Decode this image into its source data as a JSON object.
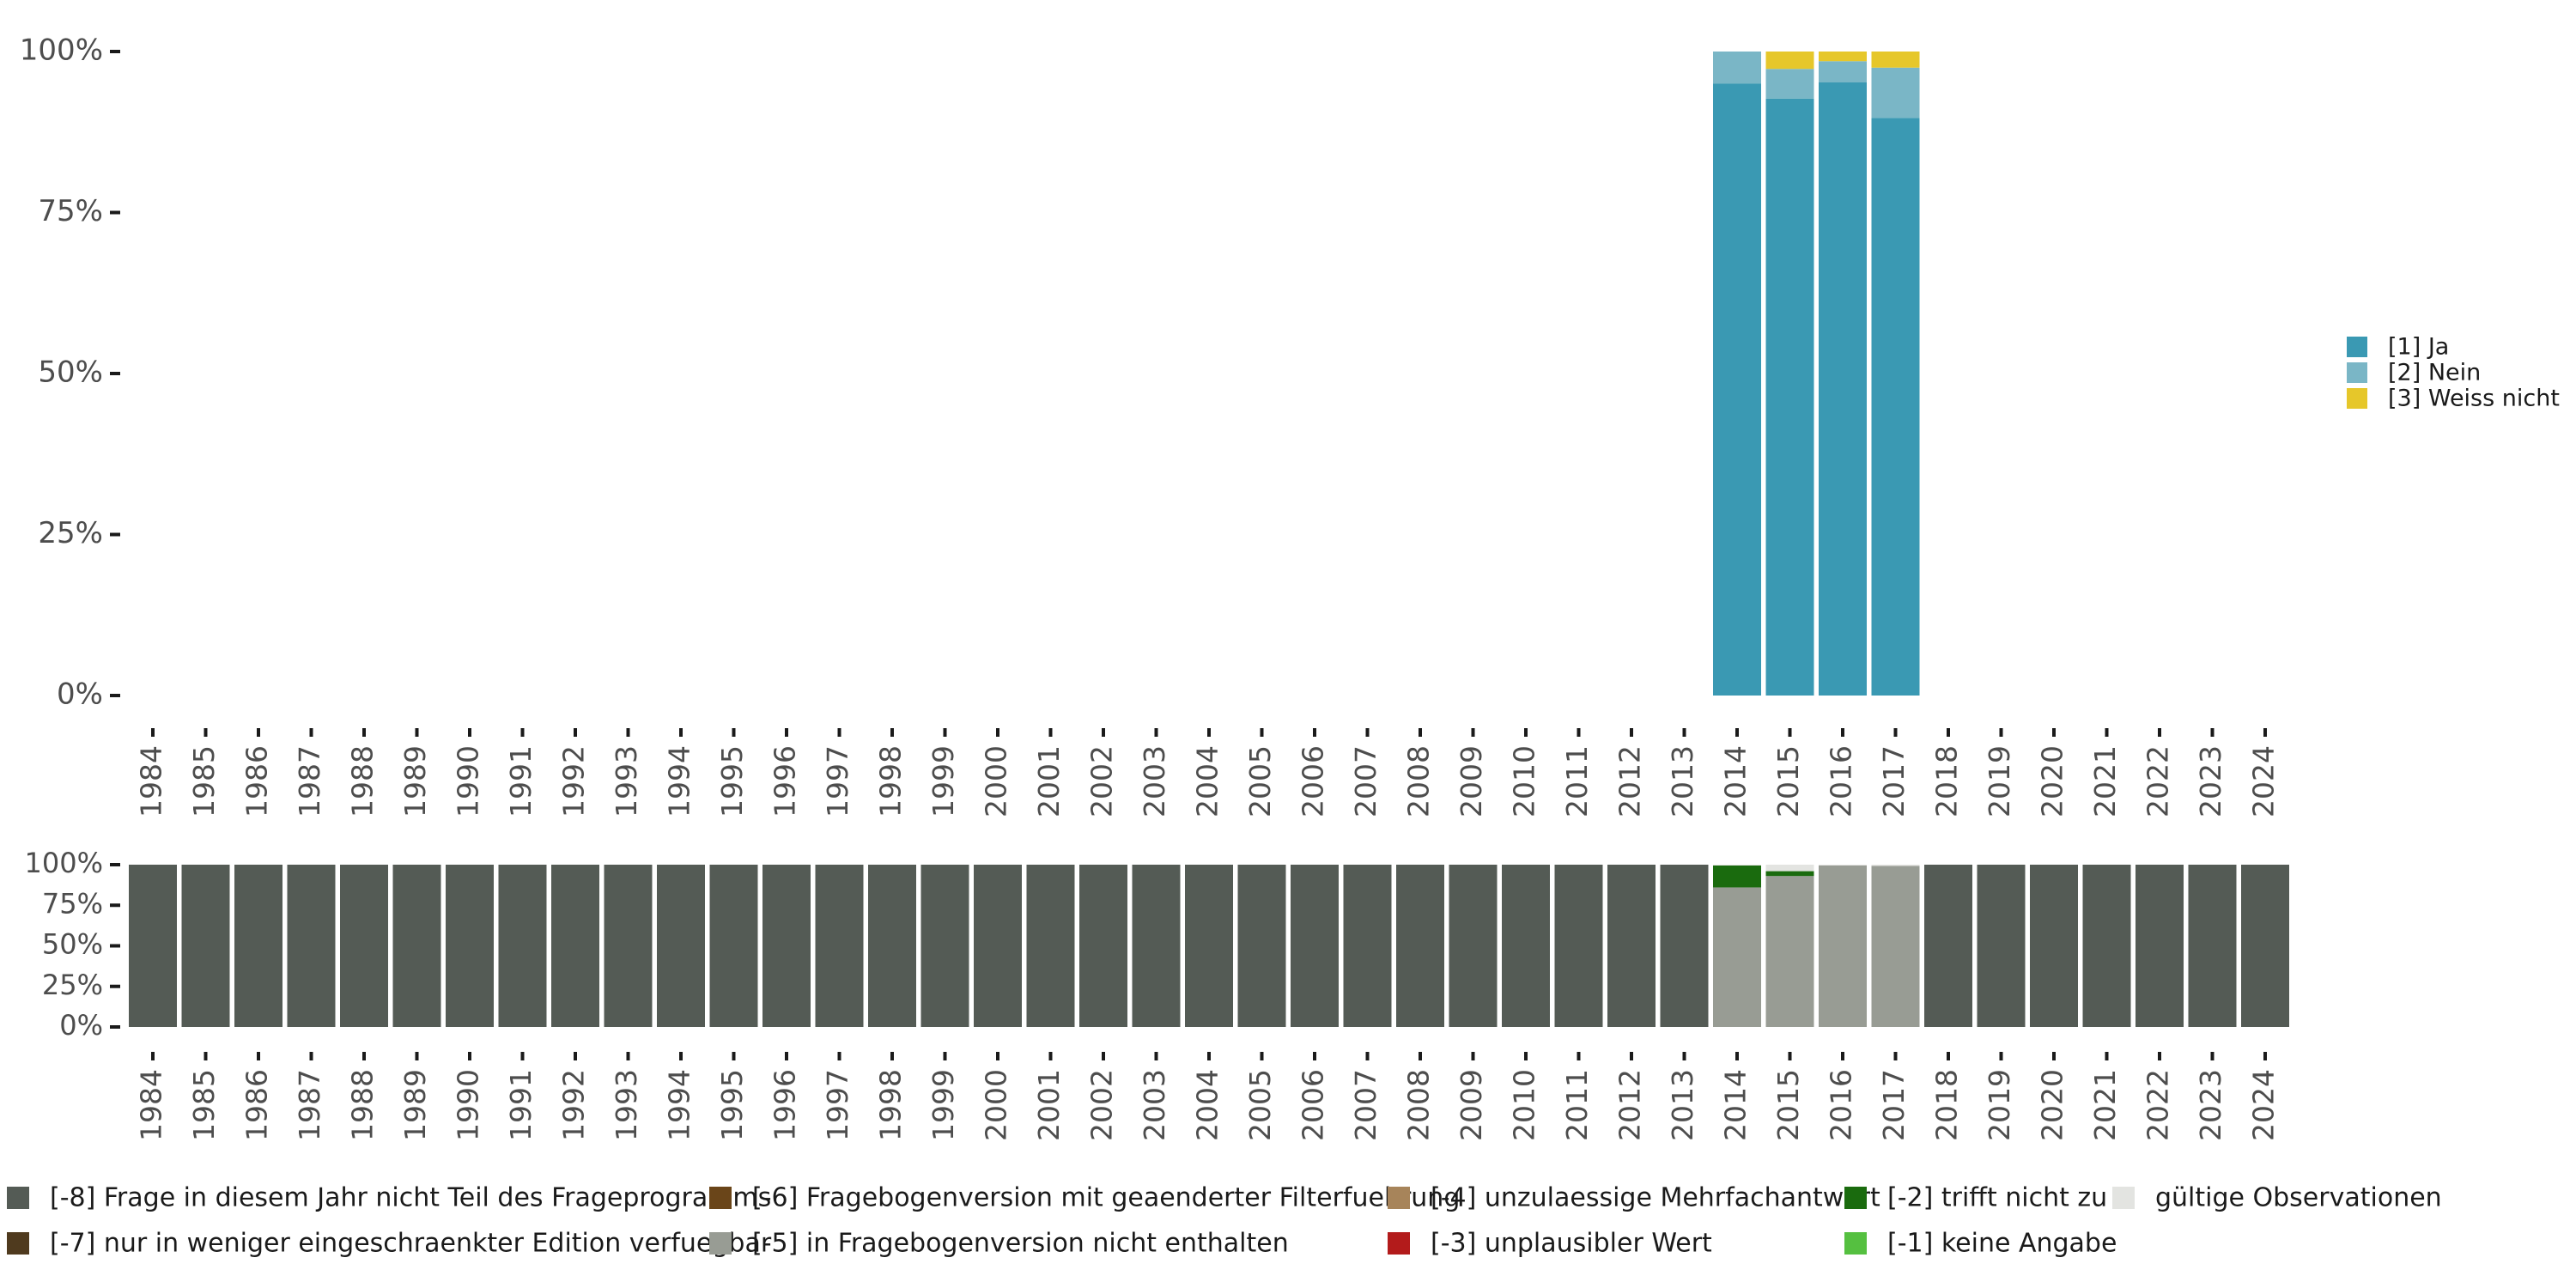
{
  "chart_data": [
    {
      "type": "bar",
      "stacked": true,
      "title": "",
      "xlabel": "",
      "ylabel": "",
      "ylim": [
        0,
        100
      ],
      "y_ticks": [
        "0%",
        "25%",
        "50%",
        "75%",
        "100%"
      ],
      "categories": [
        "1984",
        "1985",
        "1986",
        "1987",
        "1988",
        "1989",
        "1990",
        "1991",
        "1992",
        "1993",
        "1994",
        "1995",
        "1996",
        "1997",
        "1998",
        "1999",
        "2000",
        "2001",
        "2002",
        "2003",
        "2004",
        "2005",
        "2006",
        "2007",
        "2008",
        "2009",
        "2010",
        "2011",
        "2012",
        "2013",
        "2014",
        "2015",
        "2016",
        "2017",
        "2018",
        "2019",
        "2020",
        "2021",
        "2022",
        "2023",
        "2024"
      ],
      "legend_position": "right",
      "series": [
        {
          "name": "[1] Ja",
          "color": "#3a99b3",
          "values": {
            "2014": 95.0,
            "2015": 92.7,
            "2016": 95.2,
            "2017": 89.7
          }
        },
        {
          "name": "[2] Nein",
          "color": "#7ab6c6",
          "values": {
            "2014": 5.0,
            "2015": 4.6,
            "2016": 3.3,
            "2017": 7.8
          }
        },
        {
          "name": "[3] Weiss nicht",
          "color": "#e6c72a",
          "values": {
            "2014": 0.0,
            "2015": 2.7,
            "2016": 1.5,
            "2017": 2.5
          }
        }
      ]
    },
    {
      "type": "bar",
      "stacked": true,
      "title": "",
      "xlabel": "",
      "ylabel": "",
      "ylim": [
        0,
        100
      ],
      "y_ticks": [
        "0%",
        "25%",
        "50%",
        "75%",
        "100%"
      ],
      "categories": [
        "1984",
        "1985",
        "1986",
        "1987",
        "1988",
        "1989",
        "1990",
        "1991",
        "1992",
        "1993",
        "1994",
        "1995",
        "1996",
        "1997",
        "1998",
        "1999",
        "2000",
        "2001",
        "2002",
        "2003",
        "2004",
        "2005",
        "2006",
        "2007",
        "2008",
        "2009",
        "2010",
        "2011",
        "2012",
        "2013",
        "2014",
        "2015",
        "2016",
        "2017",
        "2018",
        "2019",
        "2020",
        "2021",
        "2022",
        "2023",
        "2024"
      ],
      "legend_position": "bottom",
      "series": [
        {
          "name": "[-8] Frage in diesem Jahr nicht Teil des Frageprogramms",
          "color": "#545b55",
          "values": {
            "1984": 100,
            "1985": 100,
            "1986": 100,
            "1987": 100,
            "1988": 100,
            "1989": 100,
            "1990": 100,
            "1991": 100,
            "1992": 100,
            "1993": 100,
            "1994": 100,
            "1995": 100,
            "1996": 100,
            "1997": 100,
            "1998": 100,
            "1999": 100,
            "2000": 100,
            "2001": 100,
            "2002": 100,
            "2003": 100,
            "2004": 100,
            "2005": 100,
            "2006": 100,
            "2007": 100,
            "2008": 100,
            "2009": 100,
            "2010": 100,
            "2011": 100,
            "2012": 100,
            "2013": 100,
            "2018": 100,
            "2019": 100,
            "2020": 100,
            "2021": 100,
            "2022": 100,
            "2023": 100,
            "2024": 100
          }
        },
        {
          "name": "[-7] nur in weniger eingeschraenkter Edition verfuegbar",
          "color": "#4f3a1e",
          "values": {}
        },
        {
          "name": "[-6] Fragebogenversion mit geaenderter Filterfuehrung",
          "color": "#6a4519",
          "values": {}
        },
        {
          "name": "[-5] in Fragebogenversion nicht enthalten",
          "color": "#989c94",
          "values": {
            "2014": 86.0,
            "2015": 93.0,
            "2016": 99.5,
            "2017": 99.2
          }
        },
        {
          "name": "[-4] unzulaessige Mehrfachantwort",
          "color": "#a7845a",
          "values": {}
        },
        {
          "name": "[-3] unplausibler Wert",
          "color": "#b31b1b",
          "values": {}
        },
        {
          "name": "[-2] trifft nicht zu",
          "color": "#1a6b0e",
          "values": {
            "2014": 13.5,
            "2015": 3.0
          }
        },
        {
          "name": "[-1] keine Angabe",
          "color": "#55c040",
          "values": {}
        },
        {
          "name": "gültige Observationen",
          "color": "#e3e4e1",
          "values": {
            "2014": 0.5,
            "2015": 4.0,
            "2016": 0.5,
            "2017": 0.8
          }
        }
      ]
    }
  ]
}
